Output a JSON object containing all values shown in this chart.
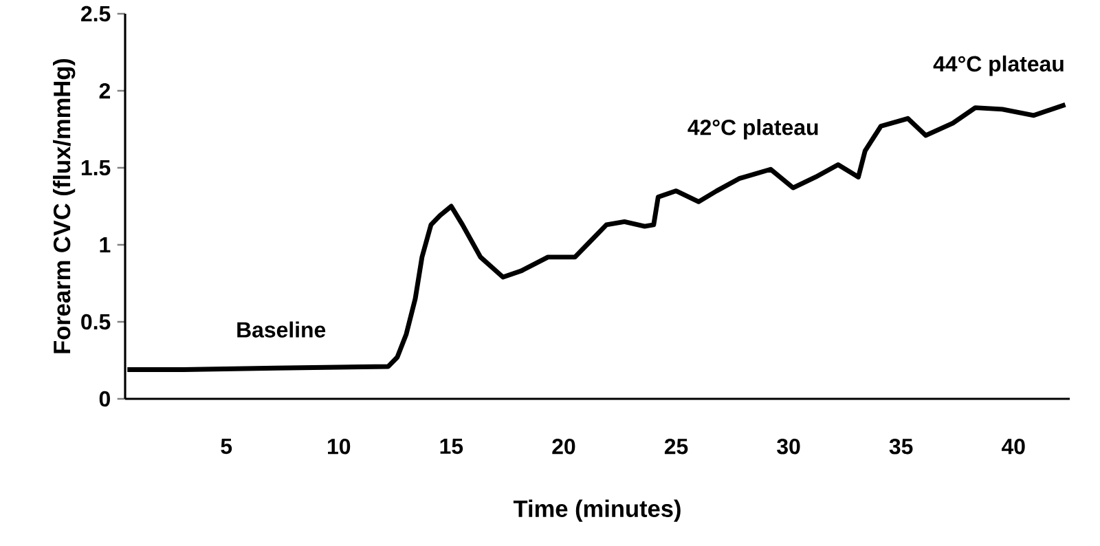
{
  "chart_data": {
    "type": "line",
    "xlabel": "Time (minutes)",
    "ylabel": "Forearm  CVC (flux/mmHg)",
    "x": [
      0.6,
      3.1,
      7.2,
      12.2,
      12.6,
      13.0,
      13.4,
      13.7,
      14.1,
      14.5,
      15.0,
      15.5,
      16.3,
      17.3,
      18.1,
      19.3,
      20.5,
      21.1,
      21.9,
      22.7,
      23.6,
      24.0,
      24.2,
      25.0,
      26.0,
      26.8,
      27.8,
      29.2,
      30.2,
      31.2,
      32.2,
      33.1,
      33.4,
      34.1,
      35.3,
      36.1,
      37.3,
      38.3,
      39.5,
      40.9,
      42.3
    ],
    "values": [
      0.19,
      0.19,
      0.2,
      0.21,
      0.27,
      0.42,
      0.65,
      0.92,
      1.13,
      1.19,
      1.25,
      1.13,
      0.92,
      0.79,
      0.83,
      0.92,
      0.92,
      1.01,
      1.13,
      1.15,
      1.12,
      1.13,
      1.31,
      1.35,
      1.28,
      1.35,
      1.43,
      1.49,
      1.37,
      1.44,
      1.52,
      1.44,
      1.61,
      1.77,
      1.82,
      1.71,
      1.79,
      1.89,
      1.88,
      1.84,
      1.91
    ],
    "color": "#000000",
    "xlim": [
      0.5,
      42.5
    ],
    "ylim": [
      0,
      2.5
    ],
    "xticks": [
      5,
      10,
      15,
      20,
      25,
      30,
      35,
      40
    ],
    "yticks": [
      0,
      0.5,
      1,
      1.5,
      2,
      2.5
    ],
    "annotations": [
      "Baseline",
      "42°C plateau",
      "44°C plateau"
    ]
  }
}
